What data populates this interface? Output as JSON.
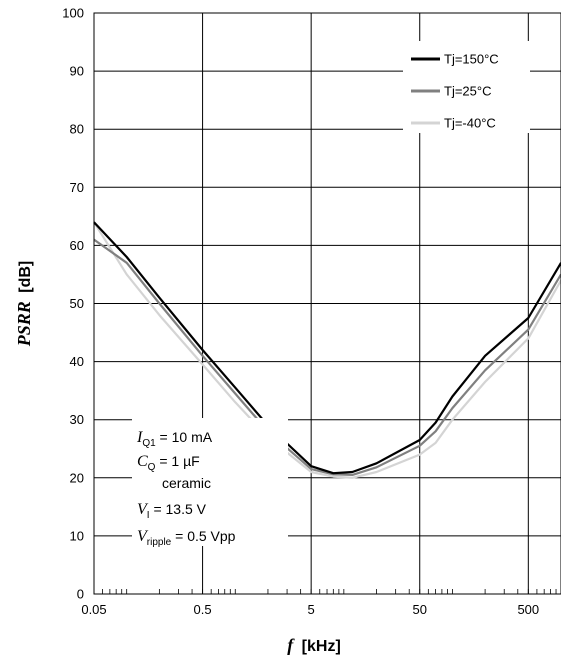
{
  "chart_data": {
    "type": "line",
    "xlabel_symbol": "f",
    "xlabel_unit": "[kHz]",
    "ylabel_symbol": "PSRR",
    "ylabel_unit": "[dB]",
    "x_scale": "log",
    "xlim": [
      0.05,
      1000
    ],
    "ylim": [
      0,
      100
    ],
    "x_tick_labels": [
      {
        "value": 0.05,
        "label": "0.05"
      },
      {
        "value": 0.5,
        "label": "0.5"
      },
      {
        "value": 5,
        "label": "5"
      },
      {
        "value": 50,
        "label": "50"
      },
      {
        "value": 500,
        "label": "500"
      }
    ],
    "y_ticks": [
      0,
      10,
      20,
      30,
      40,
      50,
      60,
      70,
      80,
      90,
      100
    ],
    "grid": true,
    "legend_position": "top-right",
    "series": [
      {
        "name": "Tj=150°C",
        "color": "#000000",
        "x": [
          0.05,
          0.1,
          0.2,
          0.5,
          1,
          2,
          5,
          8,
          12,
          20,
          50,
          70,
          100,
          200,
          500,
          1000
        ],
        "y": [
          64,
          58,
          51,
          42,
          35.5,
          29,
          22,
          20.8,
          21,
          22.5,
          26.5,
          29.5,
          34,
          41,
          47.5,
          57
        ]
      },
      {
        "name": "Tj=25°C",
        "color": "#808080",
        "x": [
          0.05,
          0.1,
          0.2,
          0.5,
          1,
          2,
          5,
          8,
          12,
          20,
          50,
          70,
          100,
          200,
          500,
          1000
        ],
        "y": [
          61,
          57,
          50,
          41,
          34.5,
          28,
          21.5,
          20.6,
          20.5,
          21.8,
          25.5,
          28,
          32,
          38.5,
          45.5,
          55
        ]
      },
      {
        "name": "Tj=-40°C",
        "color": "#d4d4d4",
        "x": [
          0.05,
          0.1,
          0.2,
          0.5,
          1,
          2,
          5,
          8,
          12,
          20,
          50,
          70,
          100,
          200,
          500,
          1000
        ],
        "y": [
          64,
          55,
          48,
          39.5,
          33,
          27,
          21,
          20.2,
          20,
          21,
          24,
          26,
          30,
          36.5,
          44,
          54
        ]
      }
    ],
    "annotations": [
      {
        "sym": "I",
        "sub": "Q1",
        "text": " = 10 mA"
      },
      {
        "sym": "C",
        "sub": "Q",
        "text": " = 1 µF"
      },
      {
        "sym": "",
        "sub": "",
        "text": "ceramic"
      },
      {
        "sym": "V",
        "sub": "I",
        "text": " = 13.5 V"
      },
      {
        "sym": "V",
        "sub": "ripple",
        "text": " = 0.5 Vpp"
      }
    ]
  }
}
